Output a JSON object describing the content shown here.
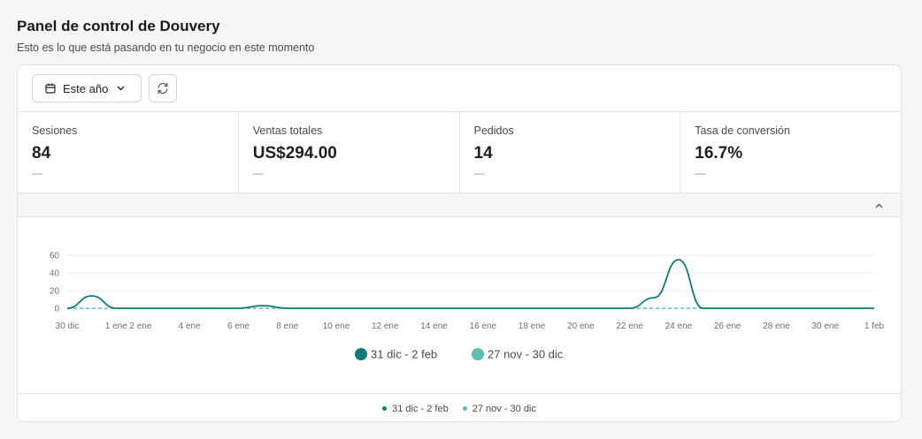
{
  "header": {
    "title": "Panel de control de Douvery",
    "subtitle": "Esto es lo que está pasando en tu negocio en este momento"
  },
  "toolbar": {
    "date_range_label": "Este año",
    "date_icon": "calendar-icon",
    "dropdown_icon": "chevron-down-icon",
    "refresh_icon": "refresh-icon"
  },
  "metrics": [
    {
      "label": "Sesiones",
      "value": "84",
      "delta": "—"
    },
    {
      "label": "Ventas totales",
      "value": "US$294.00",
      "delta": "—"
    },
    {
      "label": "Pedidos",
      "value": "14",
      "delta": "—"
    },
    {
      "label": "Tasa de conversión",
      "value": "16.7%",
      "delta": "—"
    }
  ],
  "collapse_icon": "chevron-up-icon",
  "colors": {
    "current": "#0f7c78",
    "previous": "#5bbdb6"
  },
  "chart_data": {
    "type": "line",
    "x": [
      "30 dic",
      "31 dic",
      "1 ene",
      "2 ene",
      "3 ene",
      "4 ene",
      "5 ene",
      "6 ene",
      "7 ene",
      "8 ene",
      "9 ene",
      "10 ene",
      "11 ene",
      "12 ene",
      "13 ene",
      "14 ene",
      "15 ene",
      "16 ene",
      "17 ene",
      "18 ene",
      "19 ene",
      "20 ene",
      "21 ene",
      "22 ene",
      "23 ene",
      "24 ene",
      "25 ene",
      "26 ene",
      "27 ene",
      "28 ene",
      "29 ene",
      "30 ene",
      "31 ene",
      "1 feb"
    ],
    "tick_labels": [
      "30 dic",
      "1 ene",
      "2 ene",
      "4 ene",
      "6 ene",
      "8 ene",
      "10 ene",
      "12 ene",
      "14 ene",
      "16 ene",
      "18 ene",
      "20 ene",
      "22 ene",
      "24 ene",
      "26 ene",
      "28 ene",
      "30 ene",
      "1 feb"
    ],
    "y_ticks": [
      "0",
      "20",
      "40",
      "60"
    ],
    "ylim": [
      0,
      60
    ],
    "series": [
      {
        "name": "31 dic - 2 feb",
        "values": [
          0,
          14,
          0,
          0,
          0,
          0,
          0,
          0,
          3,
          0,
          0,
          0,
          0,
          0,
          0,
          0,
          0,
          0,
          0,
          0,
          0,
          0,
          0,
          0,
          12,
          55,
          0,
          0,
          0,
          0,
          0,
          0,
          0,
          0
        ]
      },
      {
        "name": "27 nov - 30 dic",
        "values": [
          0,
          0,
          0,
          0,
          0,
          0,
          0,
          0,
          0,
          0,
          0,
          0,
          0,
          0,
          0,
          0,
          0,
          0,
          0,
          0,
          0,
          0,
          0,
          0,
          0,
          0,
          0,
          0,
          0,
          0,
          0,
          0,
          0,
          0
        ]
      }
    ],
    "grid": true,
    "legend_position": "bottom"
  }
}
